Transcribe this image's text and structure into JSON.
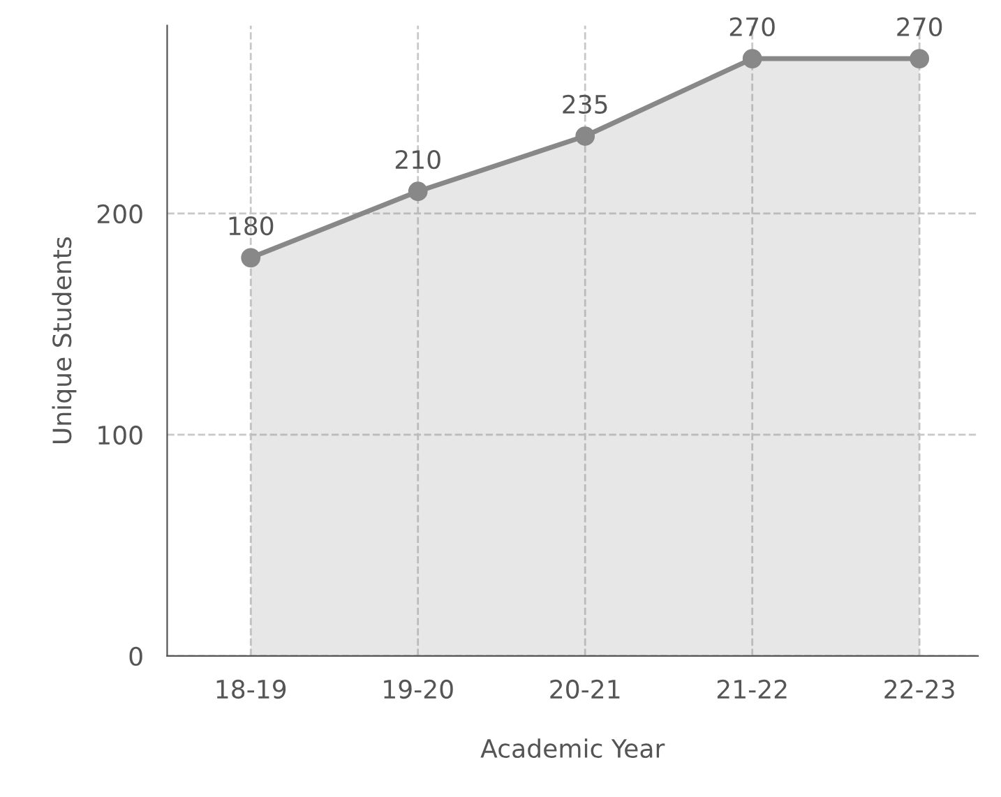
{
  "chart_data": {
    "type": "area",
    "xlabel": "Academic Year",
    "ylabel": "Unique Students",
    "categories": [
      "18-19",
      "19-20",
      "20-21",
      "21-22",
      "22-23"
    ],
    "series": [
      {
        "color": "#888888",
        "values": [
          180,
          210,
          235,
          270,
          270
        ]
      }
    ],
    "ylim": [
      0,
      285
    ],
    "yticks": [
      0,
      100,
      200
    ],
    "grid": true,
    "marker": "circle",
    "line_style": "solid",
    "data_labels": true
  }
}
